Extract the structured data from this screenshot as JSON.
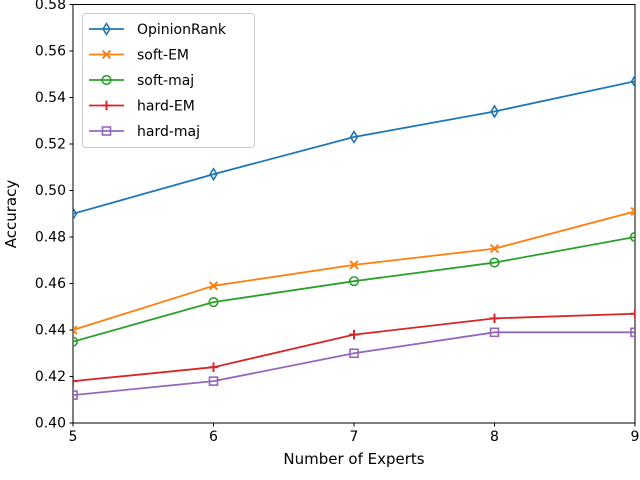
{
  "figure": {
    "background": "#ffffff",
    "frame_color": "#000000",
    "legend_border_color": "#cccccc",
    "text_color": "#000000"
  },
  "chart_data": {
    "type": "line",
    "title": "",
    "xlabel": "Number of Experts",
    "ylabel": "Accuracy",
    "x": [
      5,
      6,
      7,
      8,
      9
    ],
    "xlim": [
      5,
      9
    ],
    "ylim": [
      0.4,
      0.58
    ],
    "xticks": [
      "5",
      "6",
      "7",
      "8",
      "9"
    ],
    "yticks": [
      "0.40",
      "0.42",
      "0.44",
      "0.46",
      "0.48",
      "0.50",
      "0.52",
      "0.54",
      "0.56",
      "0.58"
    ],
    "grid": false,
    "legend_position": "upper left",
    "series": [
      {
        "name": "OpinionRank",
        "color": "#1f77b4",
        "marker": "thin-diamond",
        "values": [
          0.49,
          0.507,
          0.523,
          0.534,
          0.547
        ]
      },
      {
        "name": "soft-EM",
        "color": "#ff7f0e",
        "marker": "x",
        "values": [
          0.44,
          0.459,
          0.468,
          0.475,
          0.491
        ]
      },
      {
        "name": "soft-maj",
        "color": "#2ca02c",
        "marker": "circle",
        "values": [
          0.435,
          0.452,
          0.461,
          0.469,
          0.48
        ]
      },
      {
        "name": "hard-EM",
        "color": "#d62728",
        "marker": "plus",
        "values": [
          0.418,
          0.424,
          0.438,
          0.445,
          0.447
        ]
      },
      {
        "name": "hard-maj",
        "color": "#9467bd",
        "marker": "square",
        "values": [
          0.412,
          0.418,
          0.43,
          0.439,
          0.439
        ]
      }
    ]
  }
}
